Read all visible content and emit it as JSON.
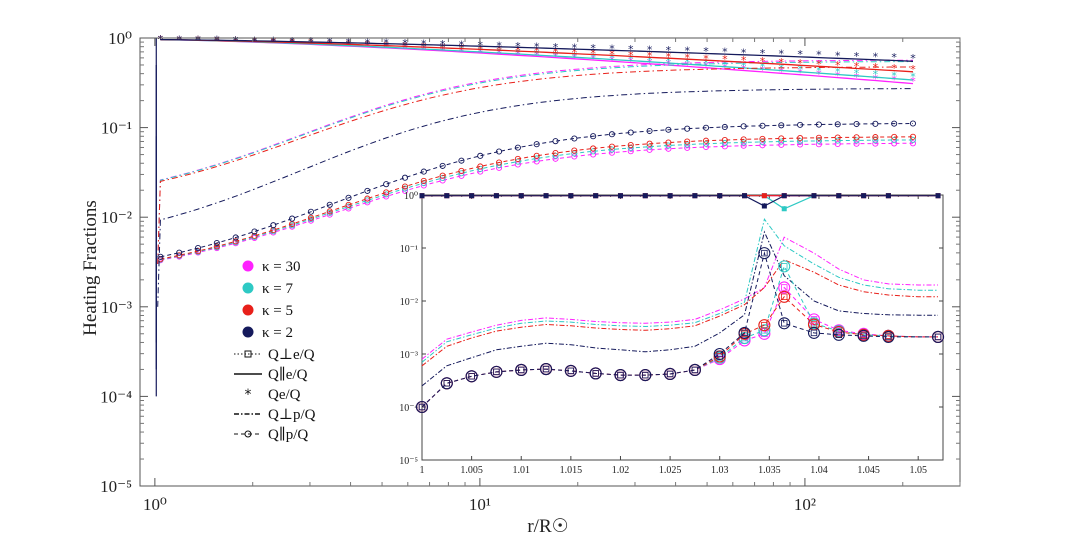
{
  "chart_data": {
    "type": "line",
    "xscale": "log",
    "yscale": "log",
    "xlabel": "r/R☉",
    "ylabel": "Heating Fractions",
    "xlim": [
      0.9,
      300
    ],
    "ylim": [
      1e-05,
      1
    ],
    "x_ticks": [
      {
        "value": 1,
        "label": "10⁰"
      },
      {
        "value": 10,
        "label": "10¹"
      },
      {
        "value": 100,
        "label": "10²"
      }
    ],
    "y_ticks": [
      {
        "value": 1,
        "label": "10⁰"
      },
      {
        "value": 0.1,
        "label": "10⁻¹"
      },
      {
        "value": 0.01,
        "label": "10⁻²"
      },
      {
        "value": 0.001,
        "label": "10⁻³"
      },
      {
        "value": 0.0001,
        "label": "10⁻⁴"
      },
      {
        "value": 1e-05,
        "label": "10⁻⁵"
      }
    ],
    "kappas": [
      {
        "label": "κ = 30",
        "color": "#ff22ff",
        "Qe_end": 0.33,
        "Qpar_e_end": 0.31,
        "Qperp_p_end": 0.56,
        "Qpar_p_end": 0.066
      },
      {
        "label": "κ = 7",
        "color": "#2ec9c4",
        "Qe_end": 0.37,
        "Qpar_e_end": 0.34,
        "Qperp_p_end": 0.54,
        "Qpar_p_end": 0.072
      },
      {
        "label": "κ = 5",
        "color": "#e8201a",
        "Qe_end": 0.45,
        "Qpar_e_end": 0.42,
        "Qperp_p_end": 0.47,
        "Qpar_p_end": 0.078
      },
      {
        "label": "κ = 2",
        "color": "#151a5c",
        "Qe_end": 0.6,
        "Qpar_e_end": 0.55,
        "Qperp_p_end": 0.27,
        "Qpar_p_end": 0.11
      }
    ],
    "components": [
      {
        "key": "Qperp_e",
        "label": "Q⊥e/Q",
        "style": "dotted-square"
      },
      {
        "key": "Qpar_e",
        "label": "Q∥e/Q",
        "style": "solid"
      },
      {
        "key": "Qe",
        "label": "Qe/Q",
        "style": "star"
      },
      {
        "key": "Qperp_p",
        "label": "Q⊥p/Q",
        "style": "dashdot"
      },
      {
        "key": "Qpar_p",
        "label": "Q∥p/Q",
        "style": "dash-circle"
      }
    ],
    "inset": {
      "xlim": [
        1.0,
        1.0525
      ],
      "ylim": [
        1e-05,
        1
      ],
      "x_ticks": [
        "1",
        "1.005",
        "1.01",
        "1.015",
        "1.02",
        "1.025",
        "1.03",
        "1.035",
        "1.04",
        "1.045",
        "1.05"
      ],
      "x_tick_values": [
        1.0,
        1.005,
        1.01,
        1.015,
        1.02,
        1.025,
        1.03,
        1.035,
        1.04,
        1.045,
        1.05
      ],
      "y_ticks": [
        "10⁰",
        "10⁻¹",
        "10⁻²",
        "10⁻³",
        "10⁻⁴",
        "10⁻⁵"
      ],
      "y_tick_values": [
        1,
        0.1,
        0.01,
        0.001,
        0.0001,
        1e-05
      ],
      "x_samples": [
        1.0,
        1.0025,
        1.005,
        1.0075,
        1.01,
        1.0125,
        1.015,
        1.0175,
        1.02,
        1.0225,
        1.025,
        1.0275,
        1.03,
        1.0325,
        1.0345,
        1.0365,
        1.0395,
        1.042,
        1.0445,
        1.047,
        1.05,
        1.052
      ],
      "marker_indices": [
        0,
        1,
        2,
        3,
        4,
        5,
        6,
        7,
        8,
        9,
        10,
        11,
        12,
        13,
        14,
        15,
        16,
        17,
        18,
        19,
        21
      ],
      "Qpar_p_series": [
        [
          0.0001,
          0.00028,
          0.00038,
          0.00046,
          0.0005,
          0.00052,
          0.00048,
          0.00043,
          0.0004,
          0.0004,
          0.00042,
          0.0005,
          0.0008,
          0.0018,
          0.0024,
          0.018,
          0.0045,
          0.0028,
          0.0024,
          0.0022,
          0.0021,
          0.0021
        ],
        [
          0.0001,
          0.00028,
          0.00038,
          0.00046,
          0.0005,
          0.00052,
          0.00048,
          0.00043,
          0.0004,
          0.0004,
          0.00042,
          0.0005,
          0.00085,
          0.002,
          0.0028,
          0.045,
          0.0038,
          0.0027,
          0.0023,
          0.0022,
          0.0021,
          0.0021
        ],
        [
          0.0001,
          0.00028,
          0.00038,
          0.00046,
          0.0005,
          0.00052,
          0.00048,
          0.00043,
          0.0004,
          0.0004,
          0.00042,
          0.0005,
          0.0009,
          0.0024,
          0.0035,
          0.012,
          0.0036,
          0.0026,
          0.0023,
          0.0022,
          0.0021,
          0.0021
        ],
        [
          0.0001,
          0.00028,
          0.00038,
          0.00046,
          0.0005,
          0.00052,
          0.00048,
          0.00043,
          0.0004,
          0.0004,
          0.00042,
          0.0005,
          0.001,
          0.0025,
          0.08,
          0.0038,
          0.0025,
          0.0023,
          0.0022,
          0.0021,
          0.0021,
          0.0021
        ]
      ],
      "Qperp_p_series": [
        [
          0.0008,
          0.0019,
          0.0026,
          0.0035,
          0.0043,
          0.0048,
          0.0045,
          0.0041,
          0.0039,
          0.0038,
          0.004,
          0.0045,
          0.0068,
          0.011,
          0.018,
          0.16,
          0.08,
          0.04,
          0.025,
          0.021,
          0.02,
          0.02
        ],
        [
          0.0007,
          0.0017,
          0.0023,
          0.0031,
          0.0038,
          0.0042,
          0.004,
          0.0036,
          0.0034,
          0.0033,
          0.0035,
          0.0039,
          0.0058,
          0.0095,
          0.35,
          0.11,
          0.05,
          0.028,
          0.02,
          0.017,
          0.016,
          0.016
        ],
        [
          0.0006,
          0.0014,
          0.002,
          0.0027,
          0.0032,
          0.0036,
          0.0034,
          0.0031,
          0.0029,
          0.0028,
          0.003,
          0.0034,
          0.0052,
          0.0085,
          0.018,
          0.06,
          0.035,
          0.02,
          0.015,
          0.013,
          0.012,
          0.012
        ],
        [
          0.00025,
          0.0006,
          0.00085,
          0.0012,
          0.0014,
          0.0016,
          0.0015,
          0.0013,
          0.0012,
          0.0011,
          0.0012,
          0.0014,
          0.0025,
          0.0055,
          0.2,
          0.03,
          0.01,
          0.0065,
          0.0058,
          0.0055,
          0.0054,
          0.0054
        ]
      ]
    }
  }
}
